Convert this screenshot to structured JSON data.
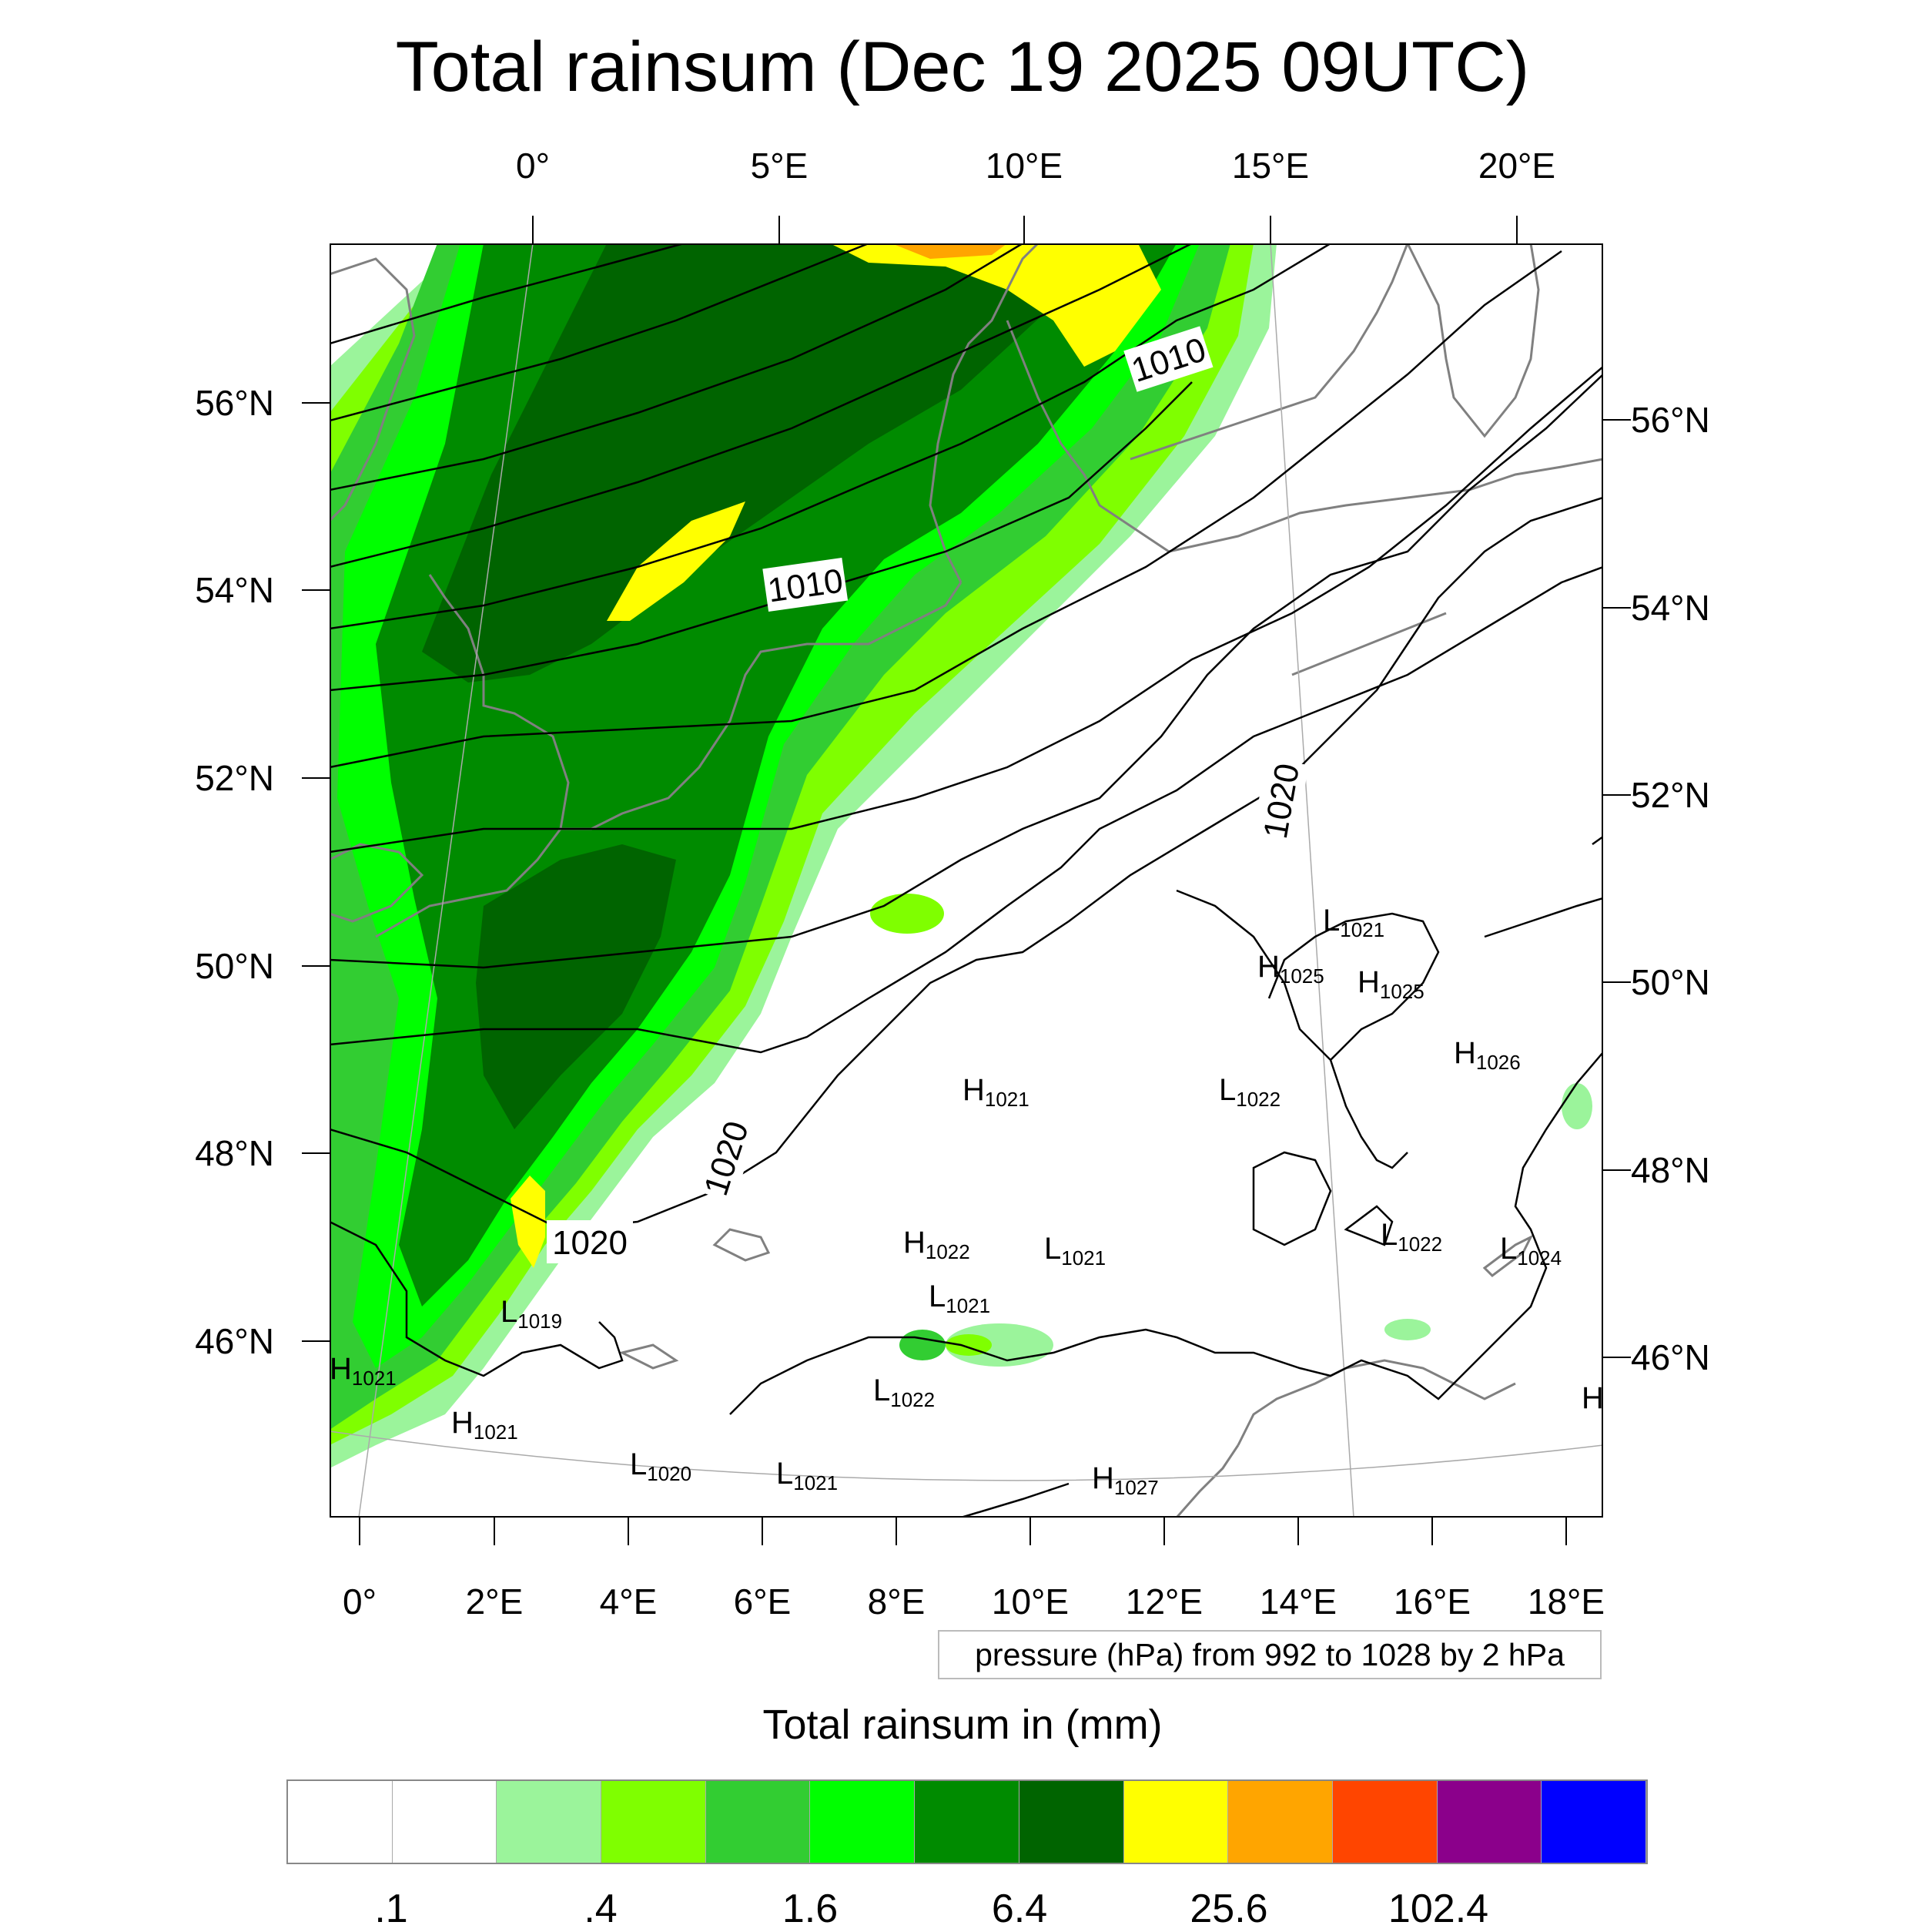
{
  "title": "Total rainsum (Dec 19 2025 09UTC)",
  "top_axis_labels": [
    "0°",
    "5°E",
    "10°E",
    "15°E",
    "20°E"
  ],
  "bottom_axis_labels": [
    "0°",
    "2°E",
    "4°E",
    "6°E",
    "8°E",
    "10°E",
    "12°E",
    "14°E",
    "16°E",
    "18°E"
  ],
  "left_axis_labels": [
    "56°N",
    "54°N",
    "52°N",
    "50°N",
    "48°N",
    "46°N"
  ],
  "right_axis_labels": [
    "56°N",
    "54°N",
    "52°N",
    "50°N",
    "48°N",
    "46°N"
  ],
  "isobar_labels": [
    "1010",
    "1010",
    "1020",
    "1020",
    "1020"
  ],
  "pressure_centers": [
    {
      "type": "L",
      "value": "1021"
    },
    {
      "type": "H",
      "value": "1025"
    },
    {
      "type": "H",
      "value": "1025"
    },
    {
      "type": "H",
      "value": "1026"
    },
    {
      "type": "H",
      "value": "1021"
    },
    {
      "type": "L",
      "value": "1022"
    },
    {
      "type": "L",
      "value": "1022"
    },
    {
      "type": "L",
      "value": "1024"
    },
    {
      "type": "H",
      "value": "1022"
    },
    {
      "type": "L",
      "value": "1021"
    },
    {
      "type": "L",
      "value": "1021"
    },
    {
      "type": "L",
      "value": "1019"
    },
    {
      "type": "H",
      "value": "1021"
    },
    {
      "type": "H",
      "value": "1021"
    },
    {
      "type": "L",
      "value": "1022"
    },
    {
      "type": "L",
      "value": "1020"
    },
    {
      "type": "L",
      "value": "1021"
    },
    {
      "type": "H",
      "value": "1027"
    },
    {
      "type": "H",
      "value": ""
    }
  ],
  "info_box": "pressure (hPa) from 992 to 1028 by 2 hPa",
  "colorbar": {
    "title": "Total rainsum in (mm)",
    "colors": [
      "#ffffff",
      "#ffffff",
      "#9bf49b",
      "#7fff00",
      "#32cd32",
      "#00ff00",
      "#008b00",
      "#006400",
      "#ffff00",
      "#ffa500",
      "#ff4500",
      "#8b008b",
      "#0000ff"
    ],
    "labels": [
      ".1",
      ".4",
      "1.6",
      "6.4",
      "25.6",
      "102.4"
    ]
  }
}
